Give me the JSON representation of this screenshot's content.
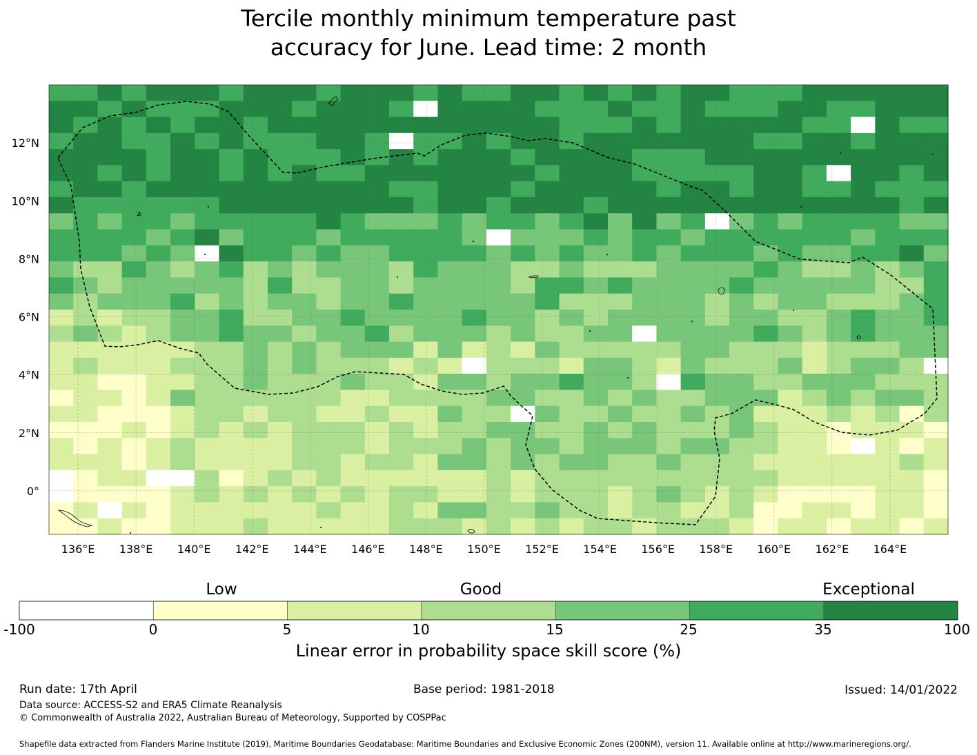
{
  "title_line1": "Tercile monthly minimum temperature past",
  "title_line2": "accuracy for June. Lead time: 2 month",
  "map": {
    "lon_ticks": [
      "136°E",
      "138°E",
      "140°E",
      "142°E",
      "144°E",
      "146°E",
      "148°E",
      "150°E",
      "152°E",
      "154°E",
      "156°E",
      "158°E",
      "160°E",
      "162°E",
      "164°E"
    ],
    "lat_ticks": [
      "12°N",
      "10°N",
      "8°N",
      "6°N",
      "4°N",
      "2°N",
      "0°"
    ],
    "lon_range": [
      135,
      166
    ],
    "lat_range": [
      -1.5,
      14
    ],
    "grid_color": "#555555",
    "boundary_style": "dashed"
  },
  "colorbar": {
    "category_labels": [
      "Low",
      "Good",
      "Exceptional"
    ],
    "ticks": [
      "-100",
      "0",
      "5",
      "10",
      "15",
      "25",
      "35",
      "100"
    ],
    "colors": [
      "#ffffff",
      "#ffffcc",
      "#d9f0a3",
      "#addd8e",
      "#78c679",
      "#41ab5d",
      "#238443"
    ],
    "title": "Linear error in probability space skill score (%)"
  },
  "footer": {
    "run_date": "Run date: 17th April",
    "base_period": "Base period: 1981-2018",
    "issued": "Issued: 14/01/2022",
    "data_source": "Data source: ACCESS-S2 and ERA5 Climate Reanalysis",
    "copyright": "© Commonwealth of Australia 2022, Australian Bureau of Meteorology, Supported by COSPPac",
    "shapefile": "Shapefile data extracted from Flanders Marine Institute (2019), Maritime Boundaries Geodatabase: Maritime Boundaries and Exclusive Economic Zones (200NM), version 11. Available online at http://www.marineregions.org/."
  }
}
